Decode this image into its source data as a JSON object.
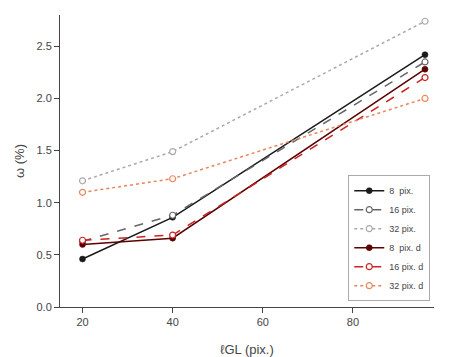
{
  "chart_data": {
    "type": "line",
    "x": [
      20,
      40,
      96
    ],
    "series": [
      {
        "name": "8  pix.",
        "values": [
          0.46,
          0.86,
          2.42
        ],
        "color": "#1a1a1a",
        "line_style": "solid",
        "marker": "circle"
      },
      {
        "name": "16 pix.",
        "values": [
          0.63,
          0.88,
          2.35
        ],
        "color": "#666666",
        "line_style": "dashed",
        "marker": "circle-open"
      },
      {
        "name": "32 pix.",
        "values": [
          1.21,
          1.49,
          2.74
        ],
        "color": "#aaaaaa",
        "line_style": "dotted",
        "marker": "circle-open"
      },
      {
        "name": "8  pix. d",
        "values": [
          0.6,
          0.66,
          2.28
        ],
        "color": "#5c0000",
        "line_style": "solid",
        "marker": "circle"
      },
      {
        "name": "16 pix. d",
        "values": [
          0.64,
          0.69,
          2.2
        ],
        "color": "#cc2222",
        "line_style": "dashed",
        "marker": "circle-open"
      },
      {
        "name": "32 pix. d",
        "values": [
          1.1,
          1.23,
          2.0
        ],
        "color": "#e8855a",
        "line_style": "dotted",
        "marker": "circle-open"
      }
    ],
    "x_label": "ℓGL (pix.)",
    "y_label": "ω (%)",
    "xlim": [
      15,
      98
    ],
    "ylim": [
      0,
      2.8
    ],
    "xticks": [
      20,
      40,
      60,
      80
    ],
    "yticks": [
      {
        "value": 0,
        "label": "0.0"
      },
      0.5,
      {
        "value": 1,
        "label": "1.0"
      },
      1.5,
      {
        "value": 2,
        "label": "2.0"
      },
      2.5
    ],
    "legend": "lower right",
    "grid": false
  }
}
